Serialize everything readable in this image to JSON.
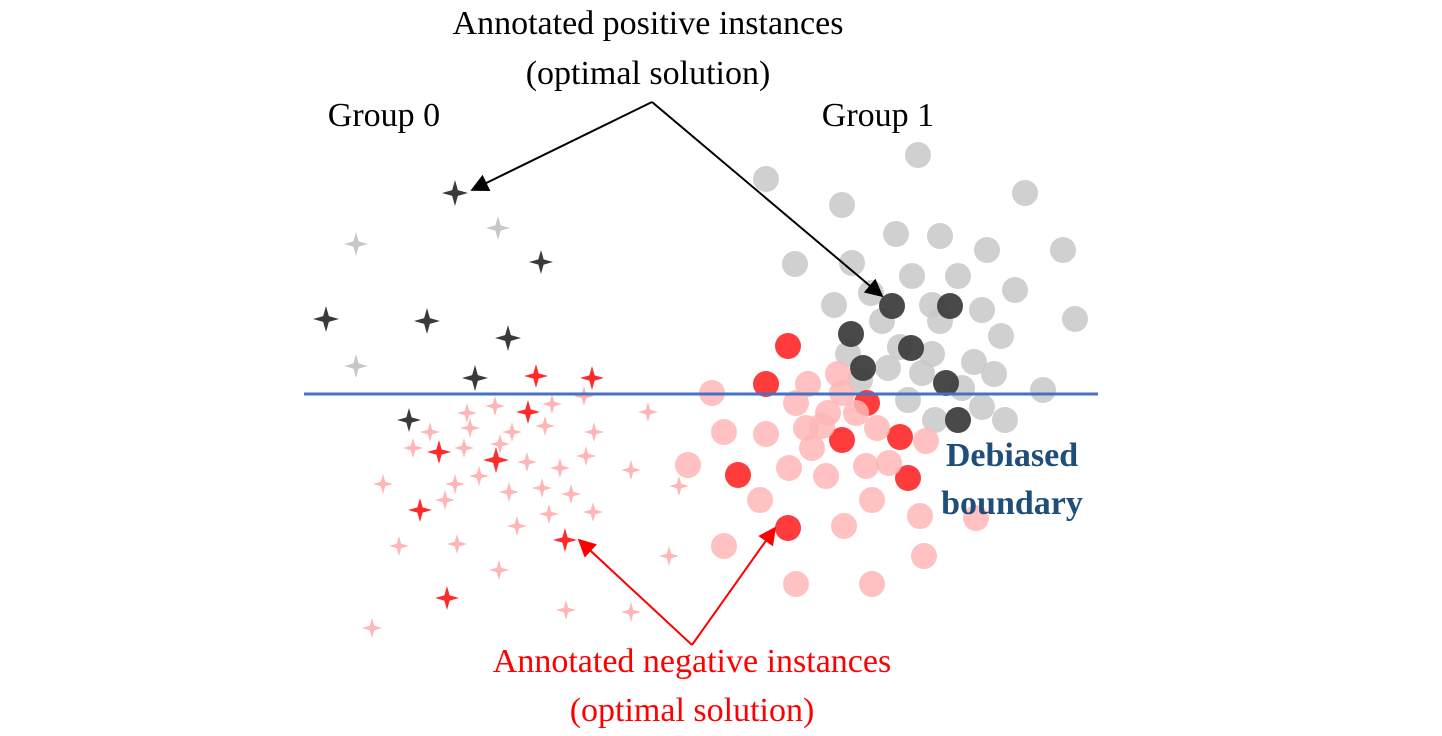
{
  "title_positive": {
    "line1": "Annotated positive instances",
    "line2": "(optimal solution)"
  },
  "title_negative": {
    "line1": "Annotated negative instances",
    "line2": "(optimal solution)"
  },
  "group_labels": {
    "group0": "Group 0",
    "group1": "Group 1"
  },
  "boundary_label": {
    "line1": "Debiased",
    "line2": "boundary"
  },
  "colors": {
    "positive_annotated": "#3a3a3a",
    "positive_unannotated": "#c8c8c8",
    "negative_annotated": "#ff2b2b",
    "negative_unannotated": "#ffb6b6",
    "boundary": "#4472c4",
    "boundary_text": "#1f4e79",
    "arrow_positive": "#000000",
    "arrow_negative": "#ff0000"
  },
  "icons": {
    "group0_marker": "four-point-star-icon",
    "group1_marker": "circle-icon"
  }
}
